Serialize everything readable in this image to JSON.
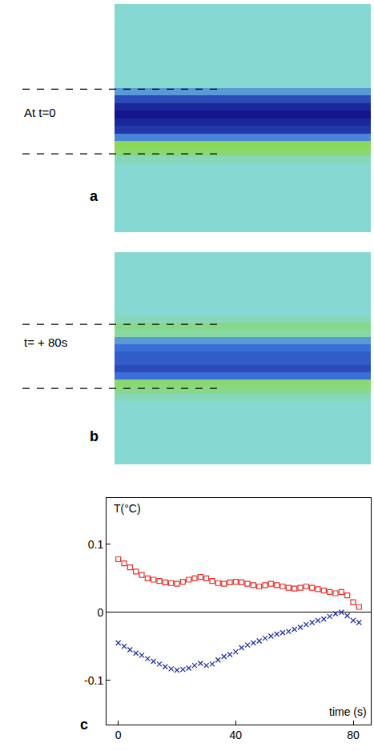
{
  "chart_data": [
    {
      "type": "heatmap",
      "panel_label": "a",
      "annotation": "At t=0",
      "tick_labels": false,
      "zlim": [
        -1,
        1
      ],
      "dashed_lines": [
        10.7,
        19.2
      ],
      "z": [
        [
          0
        ],
        [
          0
        ],
        [
          0
        ],
        [
          0
        ],
        [
          0
        ],
        [
          0
        ],
        [
          0
        ],
        [
          0
        ],
        [
          0
        ],
        [
          0
        ],
        [
          0
        ],
        [
          -0.3
        ],
        [
          -0.7
        ],
        [
          -0.9
        ],
        [
          -1
        ],
        [
          -0.9
        ],
        [
          -0.8
        ],
        [
          -0.4
        ],
        [
          0.5
        ],
        [
          0.4
        ],
        [
          0.1
        ],
        [
          0
        ],
        [
          0
        ],
        [
          0
        ],
        [
          0
        ],
        [
          0
        ],
        [
          0
        ],
        [
          0
        ],
        [
          0
        ],
        [
          0
        ]
      ]
    },
    {
      "type": "heatmap",
      "panel_label": "b",
      "annotation": "t= + 80s",
      "tick_labels": false,
      "zlim": [
        -1,
        1
      ],
      "dashed_lines": [
        9.7,
        18.75
      ],
      "z": [
        [
          0
        ],
        [
          0
        ],
        [
          0
        ],
        [
          0
        ],
        [
          0
        ],
        [
          0
        ],
        [
          0
        ],
        [
          0
        ],
        [
          0
        ],
        [
          0.1
        ],
        [
          0.3
        ],
        [
          0.2
        ],
        [
          -0.3
        ],
        [
          -0.5
        ],
        [
          -0.6
        ],
        [
          -0.6
        ],
        [
          -0.7
        ],
        [
          -0.5
        ],
        [
          0.4
        ],
        [
          0.3
        ],
        [
          0.1
        ],
        [
          0
        ],
        [
          0
        ],
        [
          0
        ],
        [
          0
        ],
        [
          0
        ],
        [
          0
        ],
        [
          0
        ],
        [
          0
        ],
        [
          0
        ]
      ]
    },
    {
      "type": "scatter",
      "panel_label": "c",
      "ylabel": "T(°C)",
      "xlabel": "time (s)",
      "xlim": [
        -4,
        86
      ],
      "ylim": [
        -0.165,
        0.168
      ],
      "xticks": [
        0,
        40,
        80
      ],
      "yticks": [
        -0.1,
        0,
        0.1
      ],
      "grid": false,
      "series": [
        {
          "color": "#e8312a",
          "marker": "square-open",
          "x": [
            0,
            2,
            4,
            6,
            8,
            10,
            12,
            14,
            16,
            18,
            20,
            22,
            24,
            26,
            28,
            30,
            32,
            34,
            36,
            38,
            40,
            42,
            44,
            46,
            48,
            50,
            52,
            54,
            56,
            58,
            60,
            62,
            64,
            66,
            68,
            70,
            72,
            74,
            76,
            78,
            80,
            82
          ],
          "values": [
            0.078,
            0.072,
            0.066,
            0.06,
            0.055,
            0.05,
            0.048,
            0.046,
            0.044,
            0.043,
            0.042,
            0.045,
            0.048,
            0.05,
            0.052,
            0.05,
            0.046,
            0.043,
            0.042,
            0.044,
            0.045,
            0.044,
            0.042,
            0.04,
            0.038,
            0.04,
            0.042,
            0.04,
            0.038,
            0.036,
            0.035,
            0.036,
            0.038,
            0.036,
            0.034,
            0.032,
            0.03,
            0.028,
            0.03,
            0.025,
            0.015,
            0.008
          ]
        },
        {
          "color": "#1f2fa8",
          "marker": "x",
          "x": [
            0,
            2,
            4,
            6,
            8,
            10,
            12,
            14,
            16,
            18,
            20,
            22,
            24,
            26,
            28,
            30,
            32,
            34,
            36,
            38,
            40,
            42,
            44,
            46,
            48,
            50,
            52,
            54,
            56,
            58,
            60,
            62,
            64,
            66,
            68,
            70,
            72,
            74,
            76,
            78,
            80,
            82
          ],
          "values": [
            -0.045,
            -0.05,
            -0.055,
            -0.06,
            -0.063,
            -0.068,
            -0.072,
            -0.076,
            -0.08,
            -0.083,
            -0.085,
            -0.084,
            -0.082,
            -0.078,
            -0.075,
            -0.078,
            -0.076,
            -0.07,
            -0.065,
            -0.062,
            -0.058,
            -0.052,
            -0.048,
            -0.045,
            -0.042,
            -0.038,
            -0.035,
            -0.032,
            -0.03,
            -0.028,
            -0.025,
            -0.022,
            -0.018,
            -0.015,
            -0.012,
            -0.01,
            -0.006,
            -0.002,
            0,
            -0.005,
            -0.012,
            -0.015
          ]
        }
      ]
    }
  ]
}
